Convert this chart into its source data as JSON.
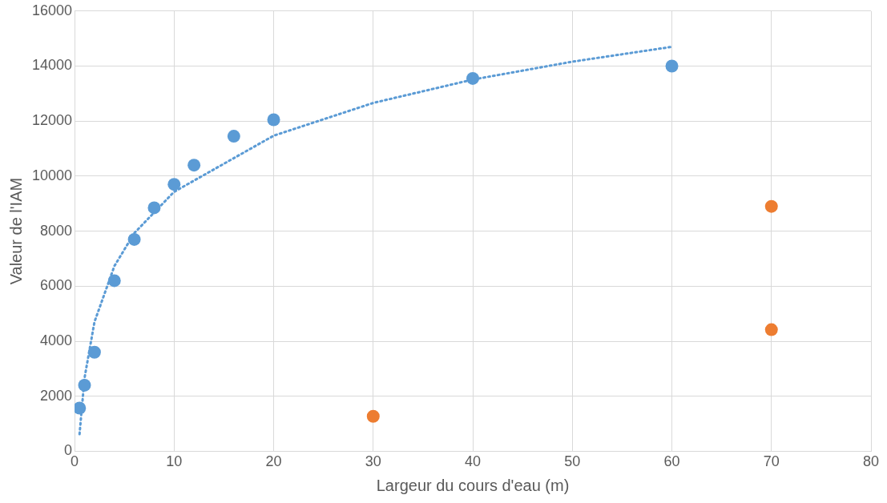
{
  "chart_data": {
    "type": "scatter",
    "xlabel": "Largeur du cours d'eau (m)",
    "ylabel": "Valeur de l'IAM",
    "xlim": [
      0,
      80
    ],
    "xticks": [
      0,
      10,
      20,
      30,
      40,
      50,
      60,
      70,
      80
    ],
    "ylim": [
      0,
      16000
    ],
    "yticks": [
      0,
      2000,
      4000,
      6000,
      8000,
      10000,
      12000,
      14000,
      16000
    ],
    "grid": true,
    "legend": false,
    "marker": "circle",
    "series": [
      {
        "color": "#5b9bd5",
        "x": [
          0.5,
          1,
          2,
          4,
          6,
          8,
          10,
          12,
          16,
          20,
          40,
          60
        ],
        "values": [
          1570,
          2400,
          3600,
          6200,
          7700,
          8850,
          9700,
          10400,
          11450,
          12050,
          13550,
          14000
        ]
      },
      {
        "color": "#ed7d31",
        "x": [
          30,
          70,
          70
        ],
        "values": [
          1270,
          8900,
          4420
        ]
      },
      {
        "type": "line",
        "color": "#5b9bd5",
        "marker": "none",
        "line_style": "dotted",
        "x": [
          0.5,
          1,
          2,
          4,
          6,
          10,
          20,
          30,
          40,
          50,
          60
        ],
        "values": [
          620,
          2660,
          4700,
          6730,
          7930,
          9430,
          11470,
          12660,
          13510,
          14160,
          14700
        ]
      }
    ]
  }
}
